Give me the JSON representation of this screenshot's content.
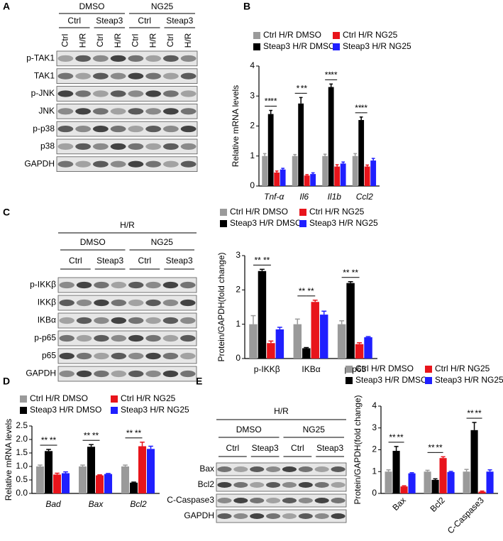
{
  "panels": [
    "A",
    "B",
    "C",
    "D",
    "E"
  ],
  "blots": [
    {
      "treatments": [
        "DMSO",
        "NG25"
      ],
      "groups": [
        "Ctrl",
        "Steap3",
        "Ctrl",
        "Steap3"
      ],
      "lanes": [
        "Ctrl",
        "H/R",
        "Ctrl",
        "H/R",
        "Ctrl",
        "H/R",
        "Ctrl",
        "H/R"
      ],
      "rows": [
        "p-TAK1",
        "TAK1",
        "p-JNK",
        "JNK",
        "p-p38",
        "p38",
        "GAPDH"
      ]
    },
    {
      "condition": "H/R",
      "treatments": [
        "DMSO",
        "NG25"
      ],
      "groups": [
        "Ctrl",
        "Steap3",
        "Ctrl",
        "Steap3"
      ],
      "rows": [
        "p-IKKβ",
        "IKKβ",
        "IKBα",
        "p-p65",
        "p65",
        "GAPDH"
      ]
    },
    {
      "condition": "H/R",
      "treatments": [
        "DMSO",
        "NG25"
      ],
      "groups": [
        "Ctrl",
        "Steap3",
        "Ctrl",
        "Steap3"
      ],
      "rows": [
        "Bax",
        "Bcl2",
        "C-Caspase3",
        "GAPDH"
      ]
    }
  ],
  "chart_data": [
    {
      "type": "bar",
      "ylabel": "Relative mRNA levels",
      "italic_categories": true,
      "categories": [
        "Tnf-α",
        "Il6",
        "Il1b",
        "Ccl2"
      ],
      "ylim": [
        0,
        4
      ],
      "yticks": [
        0,
        1,
        2,
        3,
        4
      ],
      "series": [
        {
          "name": "Ctrl H/R DMSO",
          "color": "#9a9a9a",
          "values": [
            1.0,
            1.0,
            1.0,
            1.0
          ],
          "errors": [
            0.08,
            0.05,
            0.06,
            0.08
          ]
        },
        {
          "name": "Steap3 H/R DMSO",
          "color": "#000000",
          "values": [
            2.4,
            2.75,
            3.3,
            2.2
          ],
          "errors": [
            0.12,
            0.2,
            0.1,
            0.1
          ]
        },
        {
          "name": "Ctrl H/R NG25",
          "color": "#e8141b",
          "values": [
            0.45,
            0.35,
            0.65,
            0.65
          ],
          "errors": [
            0.05,
            0.03,
            0.06,
            0.05
          ]
        },
        {
          "name": "Steap3 H/R NG25",
          "color": "#1f1fff",
          "values": [
            0.55,
            0.4,
            0.75,
            0.85
          ],
          "errors": [
            0.04,
            0.04,
            0.05,
            0.07
          ]
        }
      ],
      "significance": [
        [
          "**",
          "**"
        ],
        [
          "*",
          "**"
        ],
        [
          "**",
          "**"
        ],
        [
          "**",
          "**"
        ]
      ]
    },
    {
      "type": "bar",
      "ylabel": "Protein/GAPDH(fold change)",
      "italic_categories": false,
      "categories": [
        "p-IKKβ",
        "IKBα",
        "p-p65"
      ],
      "ylim": [
        0,
        3
      ],
      "yticks": [
        0,
        1,
        2,
        3
      ],
      "series": [
        {
          "name": "Ctrl H/R DMSO",
          "color": "#9a9a9a",
          "values": [
            1.0,
            1.0,
            1.0
          ],
          "errors": [
            0.25,
            0.15,
            0.1
          ]
        },
        {
          "name": "Steap3 H/R DMSO",
          "color": "#000000",
          "values": [
            2.55,
            0.3,
            2.2
          ],
          "errors": [
            0.05,
            0.02,
            0.04
          ]
        },
        {
          "name": "Ctrl H/R NG25",
          "color": "#e8141b",
          "values": [
            0.45,
            1.65,
            0.42
          ],
          "errors": [
            0.06,
            0.05,
            0.04
          ]
        },
        {
          "name": "Steap3 H/R NG25",
          "color": "#1f1fff",
          "values": [
            0.85,
            1.28,
            0.62
          ],
          "errors": [
            0.06,
            0.1,
            0.02
          ]
        }
      ],
      "significance": [
        [
          "**",
          "**"
        ],
        [
          "**",
          "**"
        ],
        [
          "**",
          "**"
        ]
      ]
    },
    {
      "type": "bar",
      "ylabel": "Relative mRNA levels",
      "italic_categories": true,
      "categories": [
        "Bad",
        "Bax",
        "Bcl2"
      ],
      "ylim": [
        0,
        2.5
      ],
      "yticks": [
        {
          "value": 0,
          "label": "0.0"
        },
        0.5,
        {
          "value": 1,
          "label": "1.0"
        },
        1.5,
        {
          "value": 2,
          "label": "2.0"
        },
        2.5
      ],
      "series": [
        {
          "name": "Ctrl H/R DMSO",
          "color": "#9a9a9a",
          "values": [
            1.0,
            1.0,
            1.0
          ],
          "errors": [
            0.05,
            0.05,
            0.05
          ]
        },
        {
          "name": "Steap3 H/R DMSO",
          "color": "#000000",
          "values": [
            1.57,
            1.73,
            0.4
          ],
          "errors": [
            0.06,
            0.08,
            0.02
          ]
        },
        {
          "name": "Ctrl H/R NG25",
          "color": "#e8141b",
          "values": [
            0.7,
            0.67,
            1.75
          ],
          "errors": [
            0.05,
            0.02,
            0.15
          ]
        },
        {
          "name": "Steap3 H/R NG25",
          "color": "#1f1fff",
          "values": [
            0.75,
            0.72,
            1.65
          ],
          "errors": [
            0.05,
            0.02,
            0.1
          ]
        }
      ],
      "significance": [
        [
          "**",
          "**"
        ],
        [
          "**",
          "**"
        ],
        [
          "**",
          "**"
        ]
      ]
    },
    {
      "type": "bar",
      "ylabel": "Protein/GAPDH(fold change)",
      "italic_categories": false,
      "categories": [
        "Bax",
        "Bcl2",
        "C-Caspase3"
      ],
      "ylim": [
        0,
        4
      ],
      "yticks": [
        0,
        1,
        2,
        3,
        4
      ],
      "series": [
        {
          "name": "Ctrl H/R DMSO",
          "color": "#9a9a9a",
          "values": [
            1.0,
            1.0,
            1.0
          ],
          "errors": [
            0.08,
            0.06,
            0.1
          ]
        },
        {
          "name": "Steap3 H/R DMSO",
          "color": "#000000",
          "values": [
            1.95,
            0.62,
            2.9
          ],
          "errors": [
            0.2,
            0.05,
            0.35
          ]
        },
        {
          "name": "Ctrl H/R NG25",
          "color": "#e8141b",
          "values": [
            0.32,
            1.62,
            0.08
          ],
          "errors": [
            0.03,
            0.06,
            0.03
          ]
        },
        {
          "name": "Steap3 H/R NG25",
          "color": "#1f1fff",
          "values": [
            0.92,
            0.98,
            1.0
          ],
          "errors": [
            0.03,
            0.03,
            0.08
          ]
        }
      ],
      "significance": [
        [
          "**",
          "**"
        ],
        [
          "**",
          "**"
        ],
        [
          "**",
          "**"
        ]
      ]
    }
  ]
}
